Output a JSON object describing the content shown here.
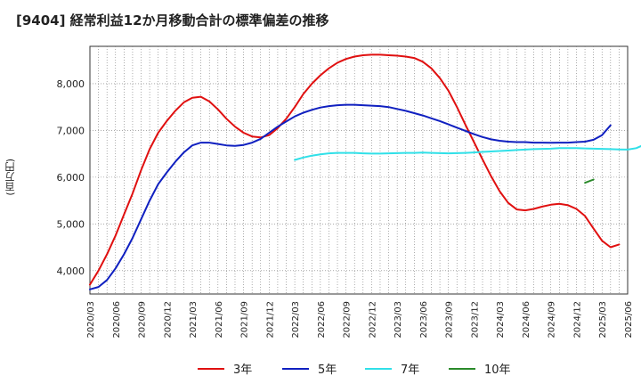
{
  "title": "[9404]  経常利益12か月移動合計の標準偏差の推移",
  "y_unit": "(百万円)",
  "chart_data": {
    "type": "line",
    "title": "[9404]  経常利益12か月移動合計の標準偏差の推移",
    "ylabel": "(百万円)",
    "xlabel": "",
    "xlim": [
      "2020/03",
      "2025/06"
    ],
    "ylim": [
      3500,
      8800
    ],
    "y_ticks": [
      4000,
      5000,
      6000,
      7000,
      8000
    ],
    "y_tick_labels": [
      "4,000",
      "5,000",
      "6,000",
      "7,000",
      "8,000"
    ],
    "x_tick_labels": [
      "2020/03",
      "2020/06",
      "2020/09",
      "2020/12",
      "2021/03",
      "2021/06",
      "2021/09",
      "2021/12",
      "2022/03",
      "2022/06",
      "2022/09",
      "2022/12",
      "2023/03",
      "2023/06",
      "2023/09",
      "2023/12",
      "2024/03",
      "2024/06",
      "2024/09",
      "2024/12",
      "2025/03",
      "2025/06"
    ],
    "grid": true,
    "legend_position": "bottom",
    "series": [
      {
        "name": "3年",
        "color": "#e01010",
        "start": "2020/03",
        "values": [
          3700,
          4000,
          4350,
          4750,
          5200,
          5650,
          6150,
          6600,
          6950,
          7200,
          7420,
          7600,
          7700,
          7720,
          7620,
          7450,
          7250,
          7080,
          6950,
          6870,
          6850,
          6900,
          7050,
          7250,
          7500,
          7780,
          8000,
          8180,
          8330,
          8450,
          8530,
          8580,
          8610,
          8620,
          8620,
          8610,
          8600,
          8580,
          8550,
          8470,
          8330,
          8120,
          7850,
          7500,
          7120,
          6750,
          6380,
          6020,
          5700,
          5450,
          5310,
          5290,
          5320,
          5370,
          5410,
          5430,
          5400,
          5320,
          5170,
          4900,
          4640,
          4500,
          4560
        ]
      },
      {
        "name": "5年",
        "color": "#1020c0",
        "start": "2020/03",
        "values": [
          3600,
          3650,
          3800,
          4050,
          4350,
          4700,
          5100,
          5500,
          5850,
          6100,
          6330,
          6530,
          6680,
          6740,
          6740,
          6710,
          6680,
          6670,
          6690,
          6740,
          6820,
          6950,
          7080,
          7190,
          7300,
          7380,
          7440,
          7490,
          7520,
          7540,
          7550,
          7550,
          7540,
          7530,
          7520,
          7500,
          7460,
          7420,
          7370,
          7320,
          7260,
          7200,
          7130,
          7060,
          6990,
          6920,
          6860,
          6810,
          6780,
          6760,
          6750,
          6750,
          6740,
          6740,
          6735,
          6740,
          6740,
          6750,
          6760,
          6800,
          6900,
          7110
        ]
      },
      {
        "name": "7年",
        "color": "#30e0e8",
        "start": "2022/03",
        "values": [
          6370,
          6420,
          6460,
          6490,
          6510,
          6520,
          6520,
          6520,
          6510,
          6505,
          6505,
          6510,
          6515,
          6520,
          6520,
          6525,
          6520,
          6515,
          6510,
          6515,
          6520,
          6530,
          6540,
          6550,
          6560,
          6570,
          6580,
          6590,
          6600,
          6605,
          6610,
          6620,
          6620,
          6620,
          6615,
          6610,
          6605,
          6600,
          6595,
          6590,
          6620,
          6700
        ]
      },
      {
        "name": "10年",
        "color": "#2a8a2a",
        "start": "2025/01",
        "values": [
          5880,
          5950
        ]
      }
    ]
  }
}
